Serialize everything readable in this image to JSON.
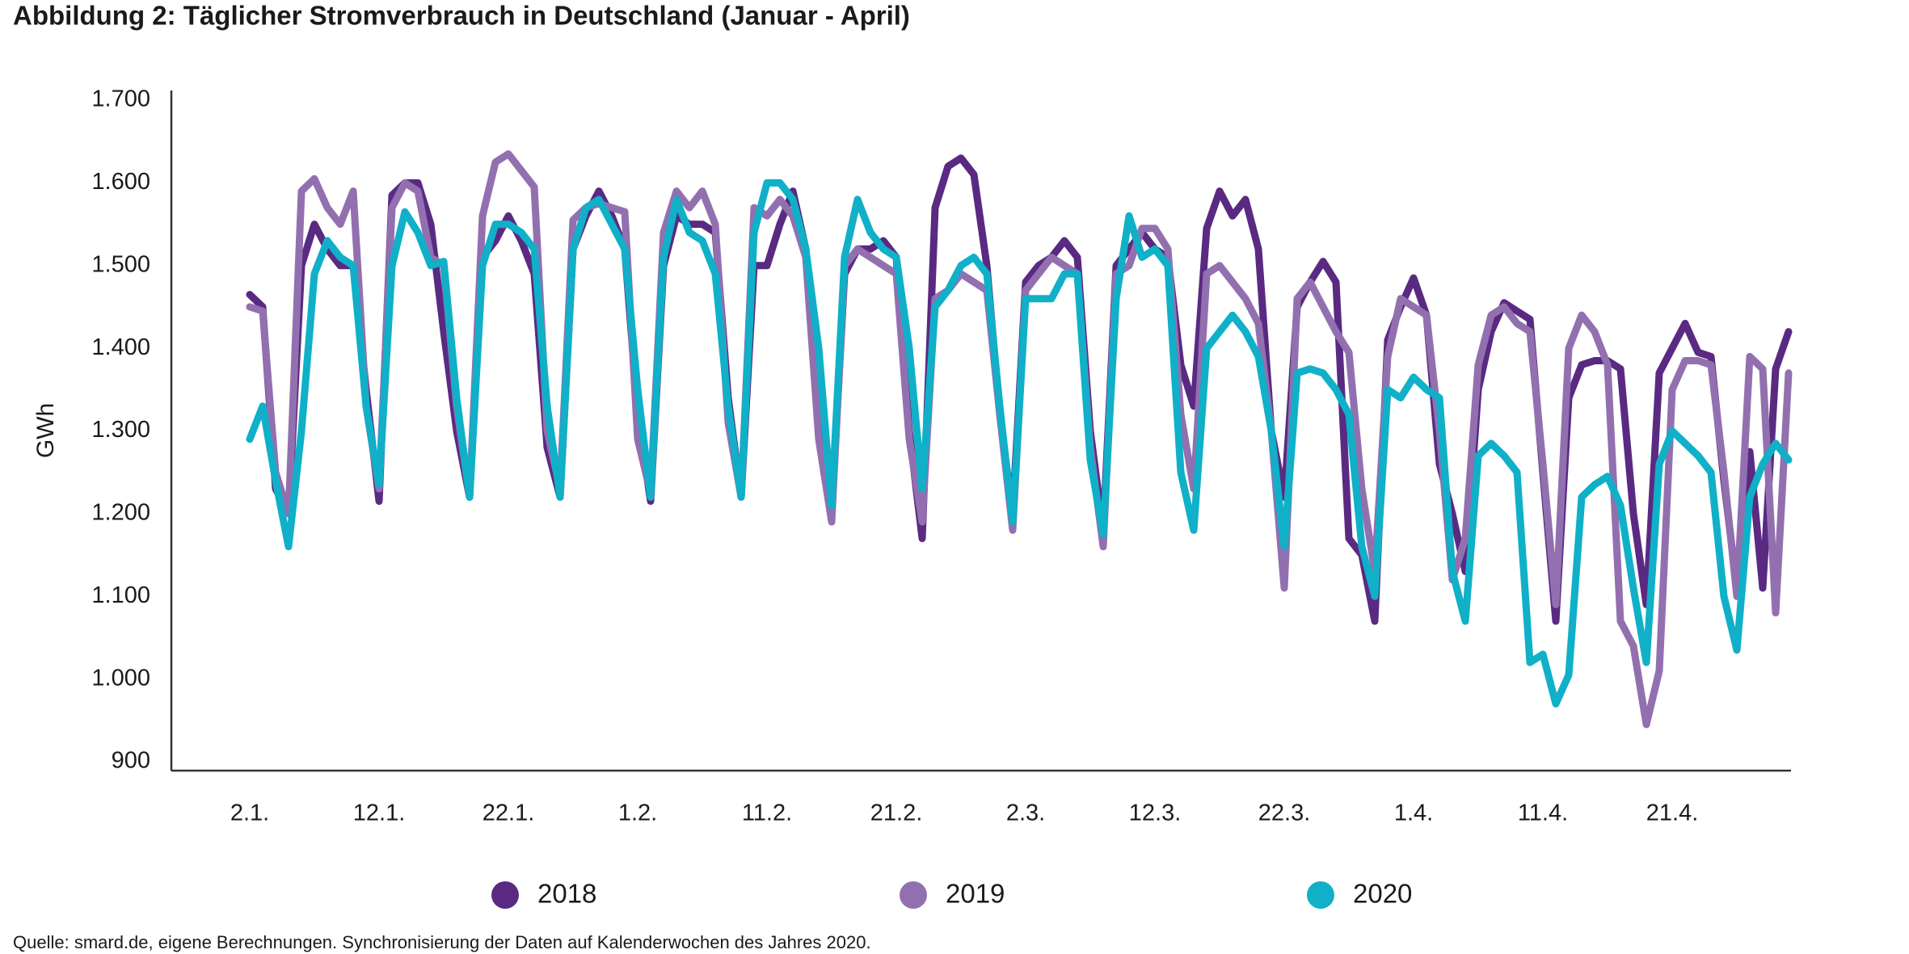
{
  "chart_data": {
    "type": "line",
    "title": "Abbildung 2: Täglicher Stromverbrauch in Deutschland (Januar - April)",
    "y_label": "GWh",
    "source": "Quelle: smard.de, eigene Berechnungen. Synchronisierung der Daten auf Kalenderwochen des Jahres 2020.",
    "categories": [
      "2.1.",
      null,
      null,
      null,
      null,
      null,
      null,
      null,
      null,
      null,
      "12.1.",
      null,
      null,
      null,
      null,
      null,
      null,
      null,
      null,
      null,
      "22.1.",
      null,
      null,
      null,
      null,
      null,
      null,
      null,
      null,
      null,
      "1.2.",
      null,
      null,
      null,
      null,
      null,
      null,
      null,
      null,
      null,
      "11.2.",
      null,
      null,
      null,
      null,
      null,
      null,
      null,
      null,
      null,
      "21.2.",
      null,
      null,
      null,
      null,
      null,
      null,
      null,
      null,
      null,
      "2.3.",
      null,
      null,
      null,
      null,
      null,
      null,
      null,
      null,
      null,
      "12.3.",
      null,
      null,
      null,
      null,
      null,
      null,
      null,
      null,
      null,
      "22.3.",
      null,
      null,
      null,
      null,
      null,
      null,
      null,
      null,
      null,
      "1.4.",
      null,
      null,
      null,
      null,
      null,
      null,
      null,
      null,
      null,
      "11.4.",
      null,
      null,
      null,
      null,
      null,
      null,
      null,
      null,
      null,
      "21.4.",
      null,
      null,
      null,
      null,
      null,
      null,
      null,
      null,
      null
    ],
    "series": [
      {
        "name": "2018",
        "color": "#5a2a82",
        "values": [
          1465,
          1450,
          1230,
          1200,
          1500,
          1550,
          1520,
          1500,
          1500,
          1350,
          1215,
          1585,
          1600,
          1600,
          1550,
          1420,
          1300,
          1220,
          1510,
          1530,
          1560,
          1530,
          1490,
          1280,
          1220,
          1520,
          1560,
          1590,
          1560,
          1520,
          1320,
          1215,
          1500,
          1560,
          1550,
          1550,
          1540,
          1340,
          1220,
          1500,
          1500,
          1550,
          1590,
          1520,
          1350,
          1200,
          1490,
          1520,
          1520,
          1530,
          1510,
          1300,
          1170,
          1570,
          1620,
          1630,
          1610,
          1500,
          1320,
          1200,
          1480,
          1500,
          1510,
          1530,
          1510,
          1300,
          1180,
          1500,
          1520,
          1540,
          1520,
          1510,
          1380,
          1330,
          1545,
          1590,
          1560,
          1580,
          1520,
          1300,
          1220,
          1450,
          1480,
          1505,
          1480,
          1170,
          1150,
          1070,
          1410,
          1450,
          1485,
          1440,
          1260,
          1200,
          1130,
          1350,
          1420,
          1455,
          1445,
          1435,
          1250,
          1070,
          1340,
          1380,
          1385,
          1385,
          1375,
          1200,
          1090,
          1370,
          1400,
          1430,
          1395,
          1390,
          1240,
          1110,
          1275,
          1110,
          1375,
          1420
        ]
      },
      {
        "name": "2019",
        "color": "#9270b0",
        "values": [
          1450,
          1445,
          1250,
          1200,
          1590,
          1605,
          1570,
          1550,
          1590,
          1330,
          1230,
          1570,
          1600,
          1590,
          1510,
          1500,
          1330,
          1220,
          1560,
          1625,
          1635,
          1615,
          1595,
          1300,
          1230,
          1555,
          1570,
          1575,
          1570,
          1565,
          1290,
          1225,
          1540,
          1590,
          1570,
          1590,
          1550,
          1310,
          1220,
          1570,
          1560,
          1580,
          1560,
          1510,
          1290,
          1190,
          1500,
          1520,
          1510,
          1500,
          1490,
          1290,
          1190,
          1460,
          1470,
          1490,
          1480,
          1470,
          1320,
          1180,
          1470,
          1490,
          1510,
          1500,
          1490,
          1280,
          1160,
          1490,
          1500,
          1545,
          1545,
          1520,
          1320,
          1230,
          1490,
          1500,
          1480,
          1460,
          1430,
          1300,
          1110,
          1460,
          1480,
          1450,
          1420,
          1395,
          1230,
          1130,
          1390,
          1460,
          1450,
          1440,
          1300,
          1120,
          1170,
          1380,
          1440,
          1450,
          1430,
          1420,
          1260,
          1090,
          1400,
          1440,
          1420,
          1380,
          1070,
          1040,
          945,
          1010,
          1350,
          1385,
          1385,
          1380,
          1250,
          1100,
          1390,
          1375,
          1080,
          1370
        ]
      },
      {
        "name": "2020",
        "color": "#0fb0c8",
        "values": [
          1290,
          1330,
          1240,
          1160,
          1300,
          1490,
          1530,
          1510,
          1500,
          1330,
          1235,
          1500,
          1565,
          1540,
          1500,
          1505,
          1340,
          1220,
          1500,
          1550,
          1550,
          1540,
          1520,
          1330,
          1220,
          1520,
          1570,
          1580,
          1550,
          1520,
          1350,
          1220,
          1510,
          1580,
          1540,
          1530,
          1490,
          1330,
          1220,
          1540,
          1600,
          1600,
          1580,
          1520,
          1400,
          1210,
          1510,
          1580,
          1540,
          1520,
          1510,
          1400,
          1230,
          1450,
          1470,
          1500,
          1510,
          1490,
          1330,
          1190,
          1460,
          1460,
          1460,
          1490,
          1490,
          1265,
          1175,
          1460,
          1560,
          1510,
          1520,
          1500,
          1250,
          1180,
          1400,
          1420,
          1440,
          1420,
          1390,
          1300,
          1160,
          1370,
          1375,
          1370,
          1350,
          1320,
          1160,
          1100,
          1350,
          1340,
          1365,
          1350,
          1340,
          1130,
          1070,
          1270,
          1285,
          1270,
          1250,
          1020,
          1030,
          970,
          1005,
          1220,
          1235,
          1245,
          1210,
          1110,
          1020,
          1260,
          1300,
          1285,
          1270,
          1250,
          1100,
          1035,
          1220,
          1260,
          1285,
          1265
        ]
      }
    ],
    "ylim": [
      900,
      1700
    ],
    "yticks": [
      900,
      {
        "value": 1000,
        "label": "1.000"
      },
      {
        "value": 1100,
        "label": "1.100"
      },
      {
        "value": 1200,
        "label": "1.200"
      },
      {
        "value": 1300,
        "label": "1.300"
      },
      {
        "value": 1400,
        "label": "1.400"
      },
      {
        "value": 1500,
        "label": "1.500"
      },
      {
        "value": 1600,
        "label": "1.600"
      },
      {
        "value": 1700,
        "label": "1.700"
      }
    ],
    "grid": false
  }
}
